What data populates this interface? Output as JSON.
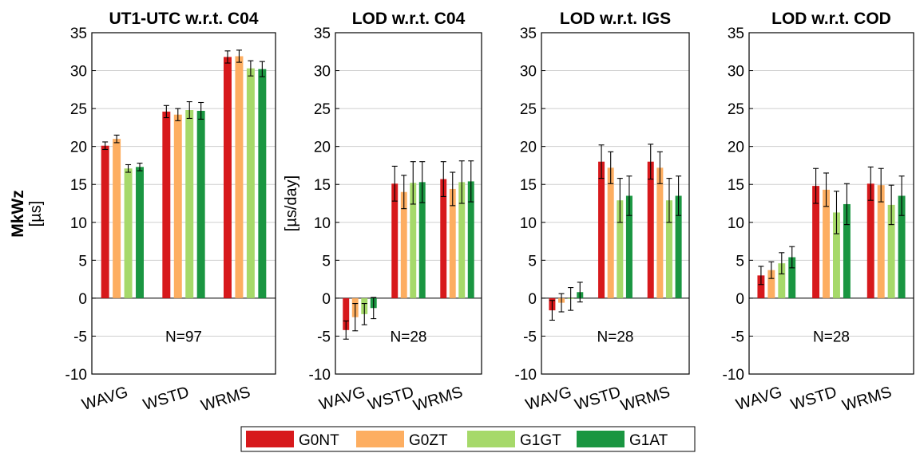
{
  "ylabel_left": {
    "main": "MkWz",
    "unit": "[µs]"
  },
  "colors": {
    "G0NT": "#d7191c",
    "G0ZT": "#fdae61",
    "G1GT": "#a6d96a",
    "G1AT": "#1a9641"
  },
  "legend": [
    "G0NT",
    "G0ZT",
    "G1GT",
    "G1AT"
  ],
  "chart_data": [
    {
      "type": "bar",
      "title": "UT1-UTC w.r.t. C04",
      "ylabel": "",
      "ylim": [
        -10,
        35
      ],
      "yticks": [
        -10,
        -5,
        0,
        5,
        10,
        15,
        20,
        25,
        30,
        35
      ],
      "categories": [
        "WAVG",
        "WSTD",
        "WRMS"
      ],
      "annotation": "N=97",
      "grid": "horizontal",
      "series": [
        {
          "name": "G0NT",
          "values": [
            20.1,
            24.6,
            31.8
          ],
          "errors": [
            0.5,
            0.8,
            0.8
          ]
        },
        {
          "name": "G0ZT",
          "values": [
            21.0,
            24.2,
            31.9
          ],
          "errors": [
            0.5,
            0.8,
            0.8
          ]
        },
        {
          "name": "G1GT",
          "values": [
            17.1,
            24.8,
            30.3
          ],
          "errors": [
            0.5,
            1.1,
            1.0
          ]
        },
        {
          "name": "G1AT",
          "values": [
            17.3,
            24.7,
            30.2
          ],
          "errors": [
            0.5,
            1.1,
            1.0
          ]
        }
      ]
    },
    {
      "type": "bar",
      "title": "LOD w.r.t. C04",
      "ylabel": "[µs/day]",
      "ylim": [
        -10,
        35
      ],
      "yticks": [
        -10,
        -5,
        0,
        5,
        10,
        15,
        20,
        25,
        30,
        35
      ],
      "categories": [
        "WAVG",
        "WSTD",
        "WRMS"
      ],
      "annotation": "N=28",
      "grid": "horizontal",
      "series": [
        {
          "name": "G0NT",
          "values": [
            -4.2,
            15.1,
            15.7
          ],
          "errors": [
            1.2,
            2.3,
            2.3
          ]
        },
        {
          "name": "G0ZT",
          "values": [
            -2.5,
            14.0,
            14.4
          ],
          "errors": [
            1.8,
            2.2,
            2.2
          ]
        },
        {
          "name": "G1GT",
          "values": [
            -2.1,
            15.2,
            15.3
          ],
          "errors": [
            1.4,
            2.8,
            2.8
          ]
        },
        {
          "name": "G1AT",
          "values": [
            -1.3,
            15.3,
            15.4
          ],
          "errors": [
            1.4,
            2.7,
            2.7
          ]
        }
      ]
    },
    {
      "type": "bar",
      "title": "LOD w.r.t. IGS",
      "ylabel": "",
      "ylim": [
        -10,
        35
      ],
      "yticks": [
        -10,
        -5,
        0,
        5,
        10,
        15,
        20,
        25,
        30,
        35
      ],
      "categories": [
        "WAVG",
        "WSTD",
        "WRMS"
      ],
      "annotation": "N=28",
      "grid": "horizontal",
      "series": [
        {
          "name": "G0NT",
          "values": [
            -1.6,
            18.0,
            18.0
          ],
          "errors": [
            1.3,
            2.2,
            2.3
          ]
        },
        {
          "name": "G0ZT",
          "values": [
            -0.6,
            17.2,
            17.2
          ],
          "errors": [
            1.2,
            2.1,
            2.1
          ]
        },
        {
          "name": "G1GT",
          "values": [
            -0.1,
            12.9,
            12.9
          ],
          "errors": [
            1.5,
            2.9,
            2.9
          ]
        },
        {
          "name": "G1AT",
          "values": [
            0.8,
            13.5,
            13.5
          ],
          "errors": [
            1.3,
            2.6,
            2.6
          ]
        }
      ]
    },
    {
      "type": "bar",
      "title": "LOD w.r.t. COD",
      "ylabel": "",
      "ylim": [
        -10,
        35
      ],
      "yticks": [
        -10,
        -5,
        0,
        5,
        10,
        15,
        20,
        25,
        30,
        35
      ],
      "categories": [
        "WAVG",
        "WSTD",
        "WRMS"
      ],
      "annotation": "N=28",
      "grid": "horizontal",
      "series": [
        {
          "name": "G0NT",
          "values": [
            3.0,
            14.8,
            15.1
          ],
          "errors": [
            1.2,
            2.3,
            2.2
          ]
        },
        {
          "name": "G0ZT",
          "values": [
            3.7,
            14.3,
            14.9
          ],
          "errors": [
            1.1,
            2.2,
            2.2
          ]
        },
        {
          "name": "G1GT",
          "values": [
            4.6,
            11.3,
            12.3
          ],
          "errors": [
            1.4,
            2.8,
            2.6
          ]
        },
        {
          "name": "G1AT",
          "values": [
            5.4,
            12.4,
            13.5
          ],
          "errors": [
            1.4,
            2.7,
            2.6
          ]
        }
      ]
    }
  ]
}
